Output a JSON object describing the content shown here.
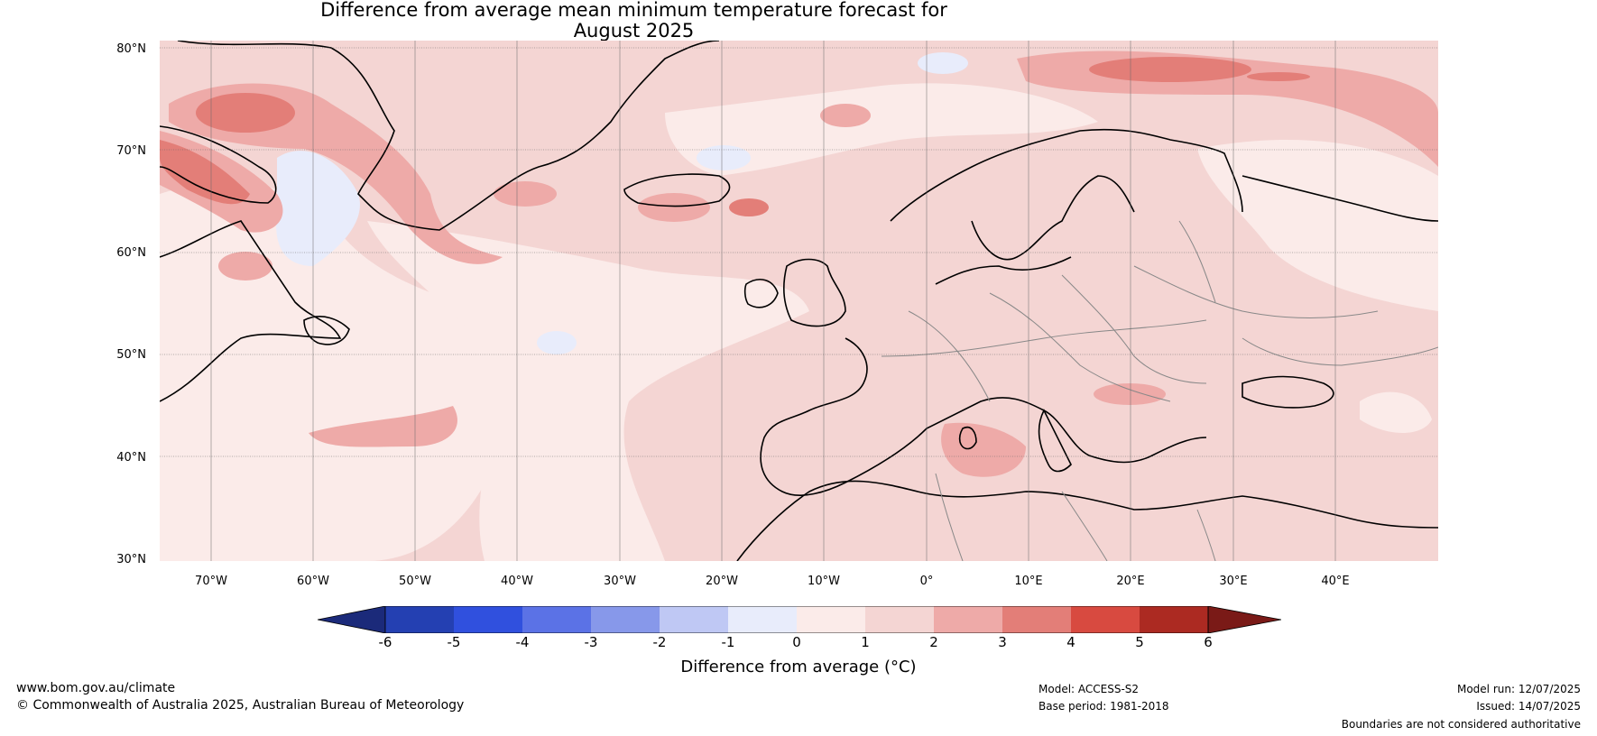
{
  "title_line1": "Difference from average mean minimum temperature forecast for",
  "title_line2": "August 2025",
  "lat_labels": [
    "80°N",
    "70°N",
    "60°N",
    "50°N",
    "40°N",
    "30°N"
  ],
  "lon_labels": [
    "70°W",
    "60°W",
    "50°W",
    "40°W",
    "30°W",
    "20°W",
    "10°W",
    "0°",
    "10°E",
    "20°E",
    "30°E",
    "40°E"
  ],
  "colorbar": {
    "label": "Difference from average (°C)",
    "ticks": [
      "-6",
      "-5",
      "-4",
      "-3",
      "-2",
      "-1",
      "0",
      "1",
      "2",
      "3",
      "4",
      "5",
      "6"
    ],
    "colors": {
      "below": "#1b2a7a",
      "-6_-5": "#2440b2",
      "-5_-4": "#3050de",
      "-4_-3": "#5b72e6",
      "-3_-2": "#8798ea",
      "-2_-1": "#bfc8f4",
      "-1_0": "#e8ecfb",
      "0_1": "#fbebe9",
      "1_2": "#f4d5d3",
      "2_3": "#eeaaa8",
      "3_4": "#e37e78",
      "4_5": "#d84a40",
      "5_6": "#ac2a22",
      "above": "#7a1a17"
    }
  },
  "footer": {
    "website": "www.bom.gov.au/climate",
    "copyright": "© Commonwealth of Australia 2025, Australian Bureau of Meteorology",
    "model": "Model: ACCESS-S2",
    "base_period": "Base period: 1981-2018",
    "model_run": "Model run: 12/07/2025",
    "issued": "Issued: 14/07/2025",
    "disclaimer": "Boundaries are not considered authoritative"
  }
}
